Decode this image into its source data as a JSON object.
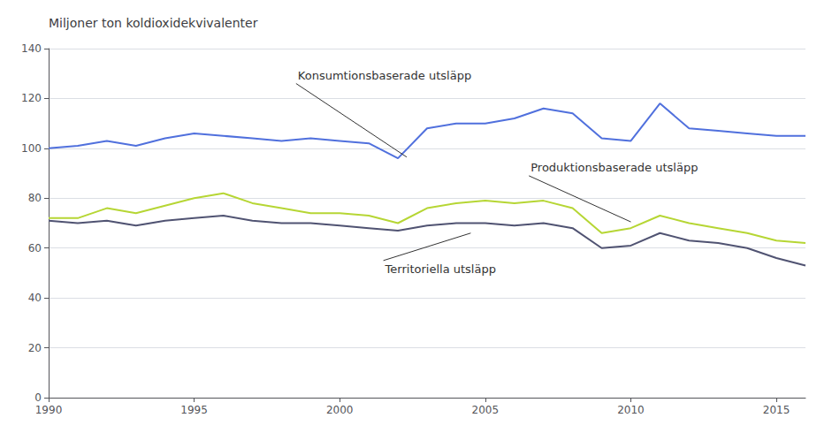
{
  "chart_data": {
    "type": "line",
    "title": "Miljoner ton koldioxidekvivalenter",
    "x": [
      1990,
      1991,
      1992,
      1993,
      1994,
      1995,
      1996,
      1997,
      1998,
      1999,
      2000,
      2001,
      2002,
      2003,
      2004,
      2005,
      2006,
      2007,
      2008,
      2009,
      2010,
      2011,
      2012,
      2013,
      2014,
      2015,
      2016
    ],
    "series": [
      {
        "values": [
          100,
          101,
          103,
          101,
          104,
          106,
          105,
          104,
          103,
          104,
          103,
          102,
          96,
          108,
          110,
          110,
          112,
          116,
          114,
          104,
          103,
          118,
          108,
          107,
          106,
          105,
          105
        ]
      },
      {
        "values": [
          72,
          72,
          76,
          74,
          77,
          80,
          82,
          78,
          76,
          74,
          74,
          73,
          70,
          76,
          78,
          79,
          78,
          79,
          76,
          66,
          68,
          73,
          70,
          68,
          66,
          63,
          62
        ]
      },
      {
        "values": [
          71,
          70,
          71,
          69,
          71,
          72,
          73,
          71,
          70,
          70,
          69,
          68,
          67,
          69,
          70,
          70,
          69,
          70,
          68,
          60,
          61,
          66,
          63,
          62,
          60,
          56,
          53
        ]
      }
    ],
    "annotations": [
      {
        "text": "Konsumtionsbaserade utsläpp",
        "xy": [
          2002.3,
          96.5
        ],
        "xytext": [
          1998.5,
          126
        ]
      },
      {
        "text": "Produktionsbaserade utsläpp",
        "xy": [
          2010.0,
          70.5
        ],
        "xytext": [
          2006.5,
          89
        ]
      },
      {
        "text": "Territoriella utsläpp",
        "xy": [
          2004.5,
          66
        ],
        "xytext": [
          2001.5,
          55
        ]
      }
    ],
    "xlim": [
      1990,
      2016
    ],
    "xticks": [
      1990,
      1995,
      2000,
      2005,
      2010,
      2015
    ],
    "ylim": [
      0,
      140
    ],
    "yticks": [
      0,
      20,
      40,
      60,
      80,
      100,
      120,
      140
    ],
    "grid": true
  }
}
